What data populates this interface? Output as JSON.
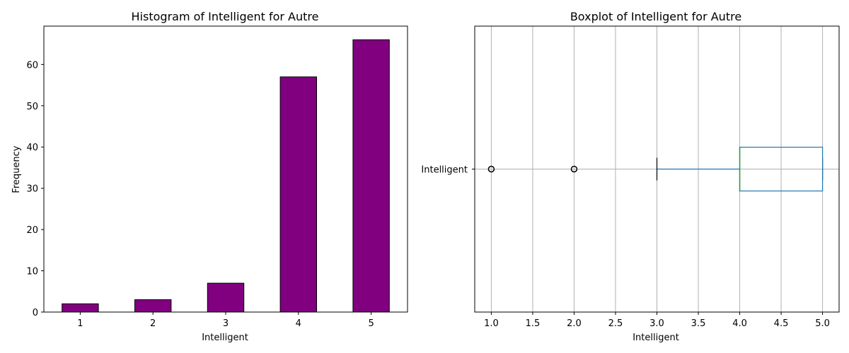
{
  "chart_data": [
    {
      "type": "bar",
      "title": "Histogram of Intelligent for Autre",
      "xlabel": "Intelligent",
      "ylabel": "Frequency",
      "categories": [
        "1",
        "2",
        "3",
        "4",
        "5"
      ],
      "values": [
        2,
        3,
        7,
        57,
        66
      ],
      "ylim": [
        0,
        69.3
      ],
      "yticks": [
        0,
        10,
        20,
        30,
        40,
        50,
        60
      ],
      "bar_color": "#800080",
      "edge_color": "#000000",
      "grid": false
    },
    {
      "type": "boxplot",
      "title": "Boxplot of Intelligent for Autre",
      "xlabel": "Intelligent",
      "category": "Intelligent",
      "xlim": [
        0.8,
        5.2
      ],
      "xticks": [
        1.0,
        1.5,
        2.0,
        2.5,
        3.0,
        3.5,
        4.0,
        4.5,
        5.0
      ],
      "xtick_labels": [
        "1.0",
        "1.5",
        "2.0",
        "2.5",
        "3.0",
        "3.5",
        "4.0",
        "4.5",
        "5.0"
      ],
      "whisker_low": 3,
      "q1": 4,
      "median": 4,
      "q3": 5,
      "whisker_high": 5,
      "outliers": [
        1,
        2
      ],
      "box_color": "#1f77b4",
      "median_color": "#2ca02c",
      "grid": true
    }
  ]
}
